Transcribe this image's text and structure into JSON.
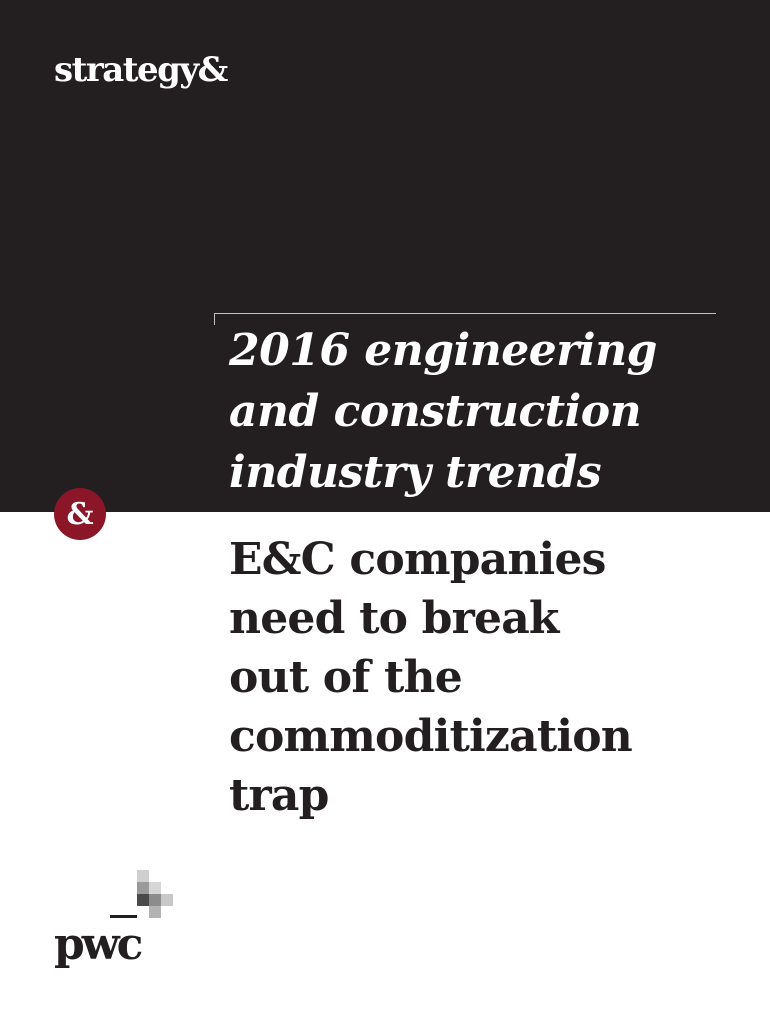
{
  "header": {
    "brand": "strategy&"
  },
  "title": {
    "lines": [
      "2016 engineering",
      "and construction",
      "industry trends"
    ]
  },
  "badge": {
    "symbol": "&"
  },
  "subtitle": {
    "lines": [
      "E&C companies",
      "need to break",
      "out of the",
      "commoditization",
      "trap"
    ]
  },
  "footer": {
    "logo_text": "pwc"
  },
  "colors": {
    "dark_band": "#231f20",
    "badge": "#8a1628",
    "text_dark": "#231f20"
  }
}
